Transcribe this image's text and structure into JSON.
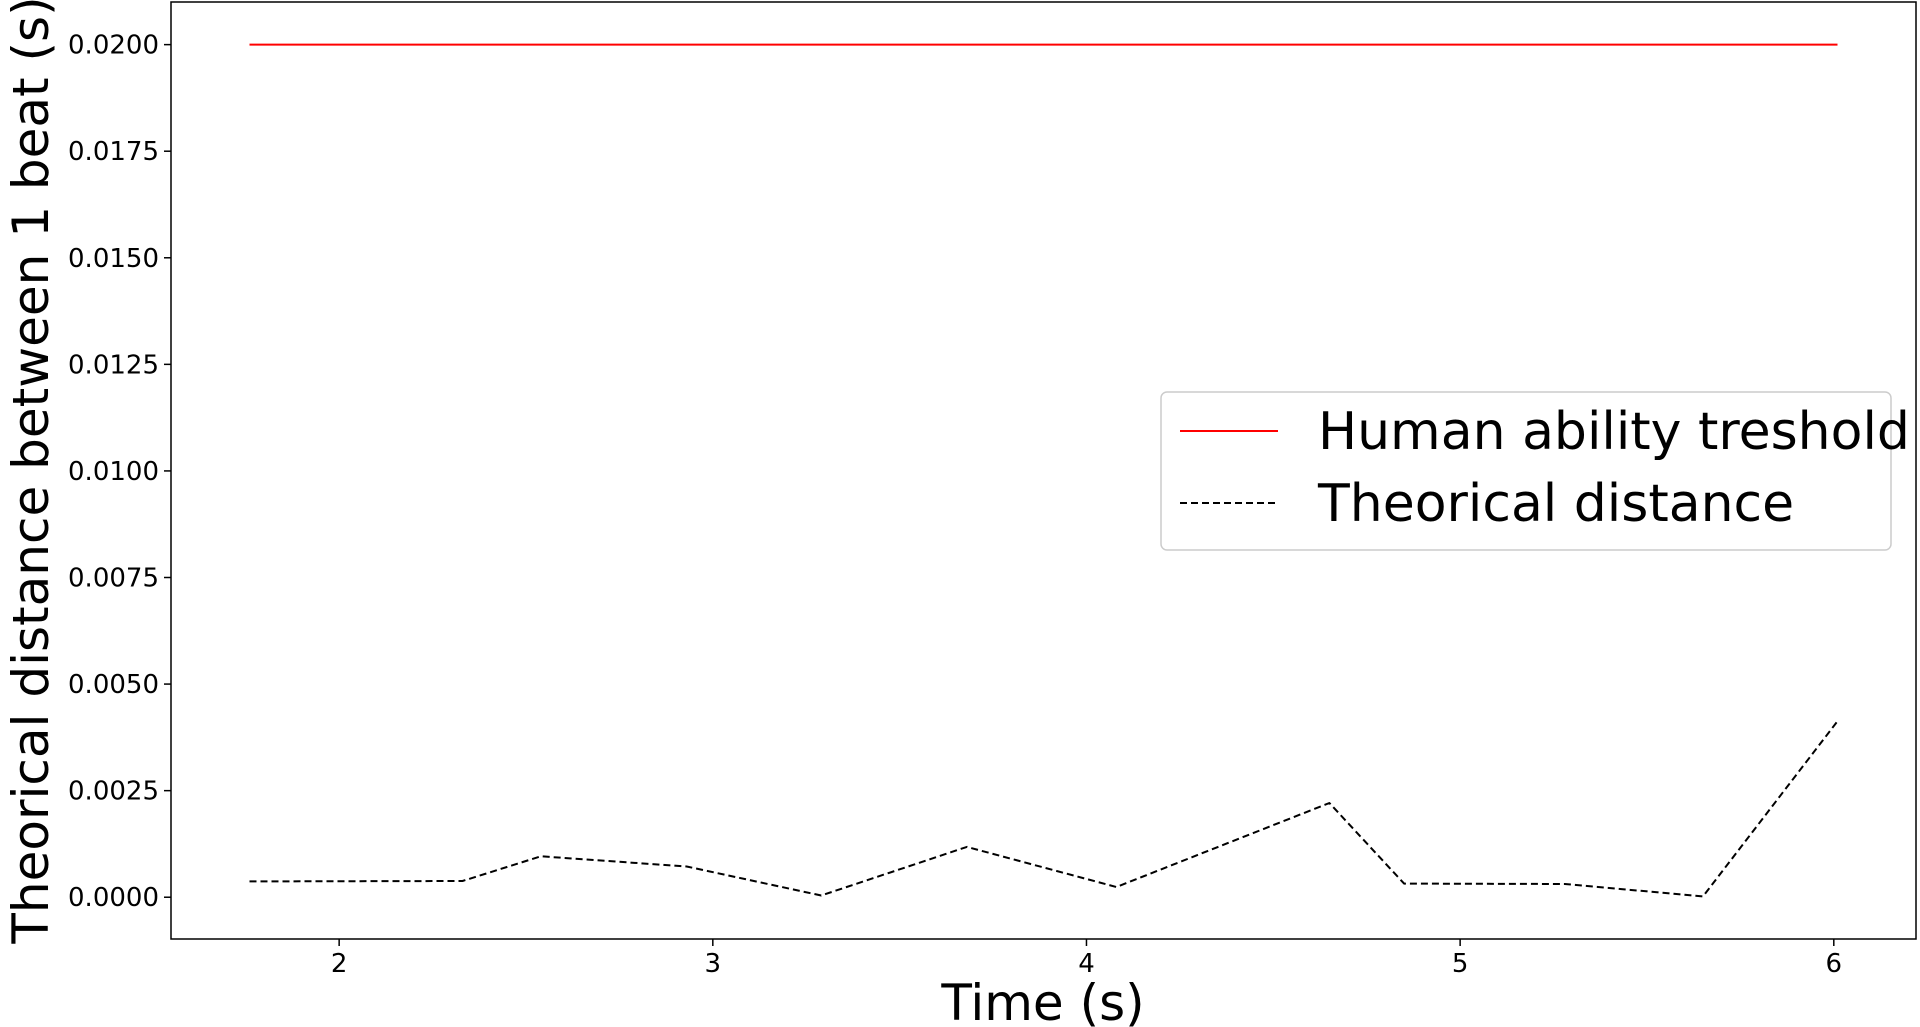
{
  "chart_data": {
    "type": "line",
    "title": "",
    "xlabel": "Time (s)",
    "ylabel": "Theorical distance between 1 beat (s)",
    "xlim": [
      1.55,
      6.22
    ],
    "ylim": [
      -0.00098,
      0.021
    ],
    "x_ticks": [
      2,
      3,
      4,
      5,
      6
    ],
    "x_tick_labels": [
      "2",
      "3",
      "4",
      "5",
      "6"
    ],
    "y_ticks": [
      0.0,
      0.0025,
      0.005,
      0.0075,
      0.01,
      0.0125,
      0.015,
      0.0175,
      0.02
    ],
    "y_tick_labels": [
      "0.0000",
      "0.0025",
      "0.0050",
      "0.0075",
      "0.0100",
      "0.0125",
      "0.0150",
      "0.0175",
      "0.0200"
    ],
    "grid": false,
    "legend_position": "center-right",
    "series": [
      {
        "name": "Human ability treshold",
        "color": "#ff0000",
        "style": "solid",
        "x": [
          1.76,
          6.01
        ],
        "y": [
          0.02,
          0.02
        ]
      },
      {
        "name": "Theorical distance",
        "color": "#000000",
        "style": "dashed",
        "x": [
          1.76,
          2.33,
          2.54,
          2.93,
          3.29,
          3.68,
          4.08,
          4.65,
          4.85,
          5.28,
          5.65,
          6.01
        ],
        "y": [
          0.00037,
          0.00038,
          0.00096,
          0.00072,
          4e-05,
          0.00118,
          0.00024,
          0.00221,
          0.00032,
          0.00031,
          2e-05,
          0.00413
        ]
      }
    ]
  }
}
